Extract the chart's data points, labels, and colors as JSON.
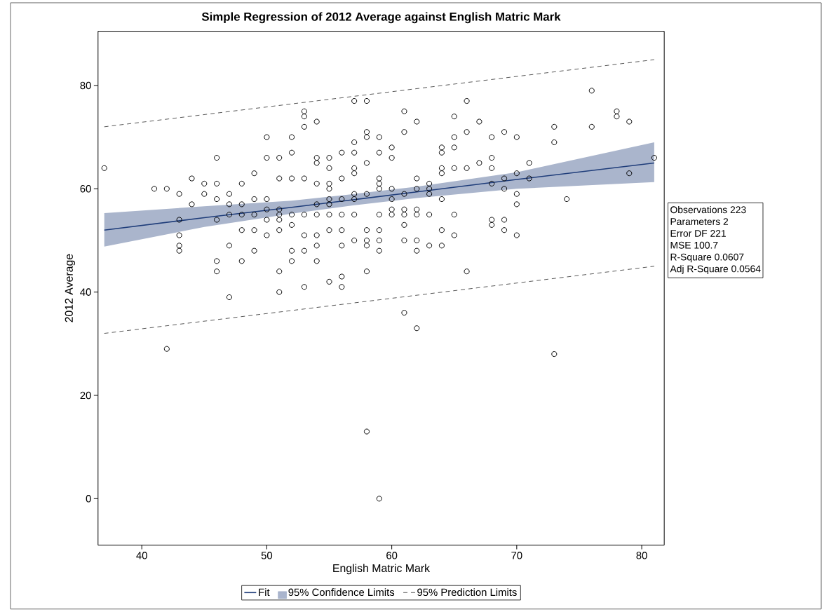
{
  "chart_data": {
    "type": "scatter",
    "title": "Simple Regression of 2012 Average against English Matric Mark",
    "xlabel": "English Matric Mark",
    "ylabel": "2012 Average",
    "xlim": [
      36.5,
      81.8
    ],
    "ylim": [
      -9,
      90.5
    ],
    "xticks": [
      40,
      50,
      60,
      70,
      80
    ],
    "yticks": [
      0,
      20,
      40,
      60,
      80
    ],
    "grid": false,
    "legend": "bottom",
    "series": [
      {
        "name": "Fit",
        "type": "line",
        "color": "#1f3d7a",
        "line_style": "solid",
        "x": [
          37,
          45,
          52,
          57,
          62,
          70,
          81
        ],
        "values": [
          52,
          54.4,
          56.4,
          57.9,
          59.4,
          61.8,
          65
        ],
        "lower": [
          48.8,
          52.6,
          55.2,
          56.8,
          58.2,
          60.0,
          61.3
        ],
        "upper": [
          55.3,
          56.6,
          57.7,
          59.0,
          60.4,
          63.2,
          69.0
        ]
      },
      {
        "name": "95% Prediction Limits",
        "type": "line",
        "color": "#555555",
        "line_style": "dashed",
        "x": [
          37,
          81
        ],
        "values": [
          72,
          85
        ]
      },
      {
        "type": "line",
        "color": "#555555",
        "line_style": "dashed",
        "x": [
          37,
          81
        ],
        "values": [
          32,
          45
        ]
      },
      {
        "color": "#000000",
        "marker": "circle",
        "x": [
          37,
          41,
          42,
          42,
          43,
          43,
          43,
          43,
          43,
          44,
          44,
          45,
          45,
          46,
          46,
          46,
          46,
          46,
          46,
          47,
          47,
          47,
          47,
          47,
          48,
          48,
          48,
          48,
          48,
          49,
          49,
          49,
          49,
          49,
          50,
          50,
          50,
          50,
          50,
          50,
          51,
          51,
          51,
          51,
          51,
          51,
          51,
          51,
          52,
          52,
          52,
          52,
          52,
          52,
          52,
          53,
          53,
          53,
          53,
          53,
          53,
          53,
          53,
          54,
          54,
          54,
          54,
          54,
          54,
          54,
          54,
          54,
          55,
          55,
          55,
          55,
          55,
          55,
          55,
          55,
          55,
          56,
          56,
          56,
          56,
          56,
          56,
          56,
          56,
          57,
          57,
          57,
          57,
          57,
          57,
          57,
          57,
          57,
          58,
          58,
          58,
          58,
          58,
          58,
          58,
          58,
          58,
          58,
          59,
          59,
          59,
          59,
          59,
          59,
          59,
          59,
          59,
          59,
          60,
          60,
          60,
          60,
          60,
          60,
          61,
          61,
          61,
          61,
          61,
          61,
          61,
          61,
          62,
          62,
          62,
          62,
          62,
          62,
          62,
          62,
          63,
          63,
          63,
          63,
          63,
          64,
          64,
          64,
          64,
          64,
          64,
          64,
          65,
          65,
          65,
          65,
          65,
          65,
          66,
          66,
          66,
          66,
          67,
          67,
          68,
          68,
          68,
          68,
          68,
          68,
          69,
          69,
          69,
          69,
          69,
          70,
          70,
          70,
          70,
          70,
          71,
          71,
          73,
          73,
          73,
          74,
          76,
          76,
          78,
          78,
          79,
          79,
          81
        ],
        "values": [
          64,
          60,
          60,
          29,
          59,
          54,
          51,
          49,
          48,
          62,
          57,
          61,
          59,
          66,
          61,
          58,
          54,
          46,
          44,
          59,
          57,
          55,
          49,
          39,
          61,
          57,
          55,
          52,
          46,
          63,
          58,
          55,
          52,
          48,
          70,
          66,
          58,
          56,
          54,
          51,
          66,
          62,
          56,
          55,
          54,
          52,
          44,
          40,
          70,
          67,
          62,
          55,
          53,
          48,
          46,
          75,
          74,
          72,
          62,
          55,
          51,
          48,
          41,
          73,
          66,
          65,
          61,
          57,
          55,
          51,
          49,
          46,
          66,
          64,
          61,
          60,
          58,
          57,
          55,
          52,
          42,
          67,
          62,
          58,
          55,
          52,
          49,
          43,
          41,
          77,
          69,
          67,
          64,
          63,
          59,
          58,
          55,
          50,
          77,
          71,
          70,
          65,
          59,
          52,
          50,
          49,
          44,
          13,
          70,
          67,
          62,
          61,
          60,
          55,
          52,
          50,
          48,
          0,
          68,
          66,
          60,
          58,
          56,
          55,
          75,
          71,
          59,
          56,
          55,
          53,
          50,
          36,
          73,
          62,
          60,
          56,
          55,
          50,
          48,
          33,
          61,
          60,
          59,
          55,
          49,
          68,
          67,
          64,
          63,
          58,
          52,
          49,
          74,
          70,
          68,
          64,
          55,
          51,
          77,
          71,
          64,
          44,
          73,
          65,
          70,
          66,
          64,
          61,
          54,
          53,
          71,
          62,
          60,
          54,
          52,
          70,
          63,
          59,
          57,
          51,
          65,
          62,
          72,
          69,
          28,
          58,
          79,
          72,
          75,
          74,
          73,
          63,
          66
        ]
      }
    ],
    "annotations": [
      "95% Confidence Limits",
      "Observations 223",
      "Parameters 2",
      "Error DF 221",
      "MSE 100.7",
      "R-Square 0.0607",
      "Adj R-Square 0.0564"
    ]
  }
}
